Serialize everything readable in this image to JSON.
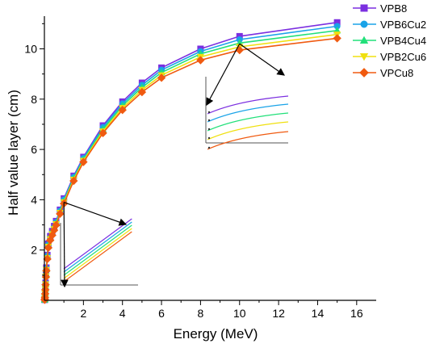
{
  "chart_data": {
    "type": "line",
    "title": "",
    "xlabel": "Energy (MeV)",
    "ylabel": "Half value layer (cm)",
    "xlim": [
      0,
      17
    ],
    "ylim": [
      0,
      11.3
    ],
    "xticks": [
      "2",
      "4",
      "6",
      "8",
      "10",
      "12",
      "14",
      "16"
    ],
    "yticks": [
      "2",
      "4",
      "6",
      "8",
      "10"
    ],
    "legend_position": "top-right",
    "x": [
      0.015,
      0.02,
      0.03,
      0.04,
      0.05,
      0.06,
      0.08,
      0.1,
      0.15,
      0.2,
      0.3,
      0.4,
      0.5,
      0.6,
      0.8,
      1,
      1.5,
      2,
      3,
      4,
      5,
      6,
      8,
      10,
      15
    ],
    "series": [
      {
        "name": "VPB8",
        "color": "#7b2fe0",
        "marker": "square",
        "values": [
          0.02,
          0.05,
          0.15,
          0.3,
          0.5,
          0.7,
          1.05,
          1.3,
          1.8,
          2.25,
          2.55,
          2.75,
          2.95,
          3.15,
          3.6,
          4.05,
          4.95,
          5.7,
          6.95,
          7.9,
          8.65,
          9.25,
          10.0,
          10.5,
          11.05
        ]
      },
      {
        "name": "VPB6Cu2",
        "color": "#1aa3e8",
        "marker": "circle",
        "values": [
          0.02,
          0.05,
          0.14,
          0.29,
          0.48,
          0.68,
          1.02,
          1.27,
          1.76,
          2.21,
          2.51,
          2.71,
          2.91,
          3.11,
          3.56,
          4.0,
          4.9,
          5.65,
          6.88,
          7.82,
          8.56,
          9.16,
          9.9,
          10.37,
          10.9
        ]
      },
      {
        "name": "VPB4Cu4",
        "color": "#22e07a",
        "marker": "triangle-up",
        "values": [
          0.02,
          0.05,
          0.13,
          0.28,
          0.46,
          0.66,
          0.99,
          1.24,
          1.72,
          2.17,
          2.47,
          2.67,
          2.87,
          3.07,
          3.52,
          3.95,
          4.85,
          5.6,
          6.8,
          7.74,
          8.47,
          9.06,
          9.8,
          10.23,
          10.73
        ]
      },
      {
        "name": "VPB2Cu6",
        "color": "#f0e010",
        "marker": "triangle-down",
        "values": [
          0.02,
          0.04,
          0.12,
          0.27,
          0.44,
          0.64,
          0.96,
          1.21,
          1.68,
          2.13,
          2.43,
          2.63,
          2.83,
          3.03,
          3.48,
          3.9,
          4.8,
          5.55,
          6.72,
          7.65,
          8.37,
          8.95,
          9.68,
          10.08,
          10.57
        ]
      },
      {
        "name": "VPCu8",
        "color": "#f05a10",
        "marker": "diamond",
        "values": [
          0.02,
          0.04,
          0.11,
          0.26,
          0.42,
          0.62,
          0.93,
          1.18,
          1.64,
          2.09,
          2.39,
          2.59,
          2.79,
          2.99,
          3.44,
          3.85,
          4.75,
          5.5,
          6.65,
          7.57,
          8.28,
          8.85,
          9.55,
          9.95,
          10.42
        ]
      }
    ],
    "annotations": [
      {
        "type": "zoom-inset",
        "target_x": 10,
        "target_y": 10.2
      },
      {
        "type": "zoom-inset",
        "target_x": 1,
        "target_y": 3.9
      }
    ]
  }
}
